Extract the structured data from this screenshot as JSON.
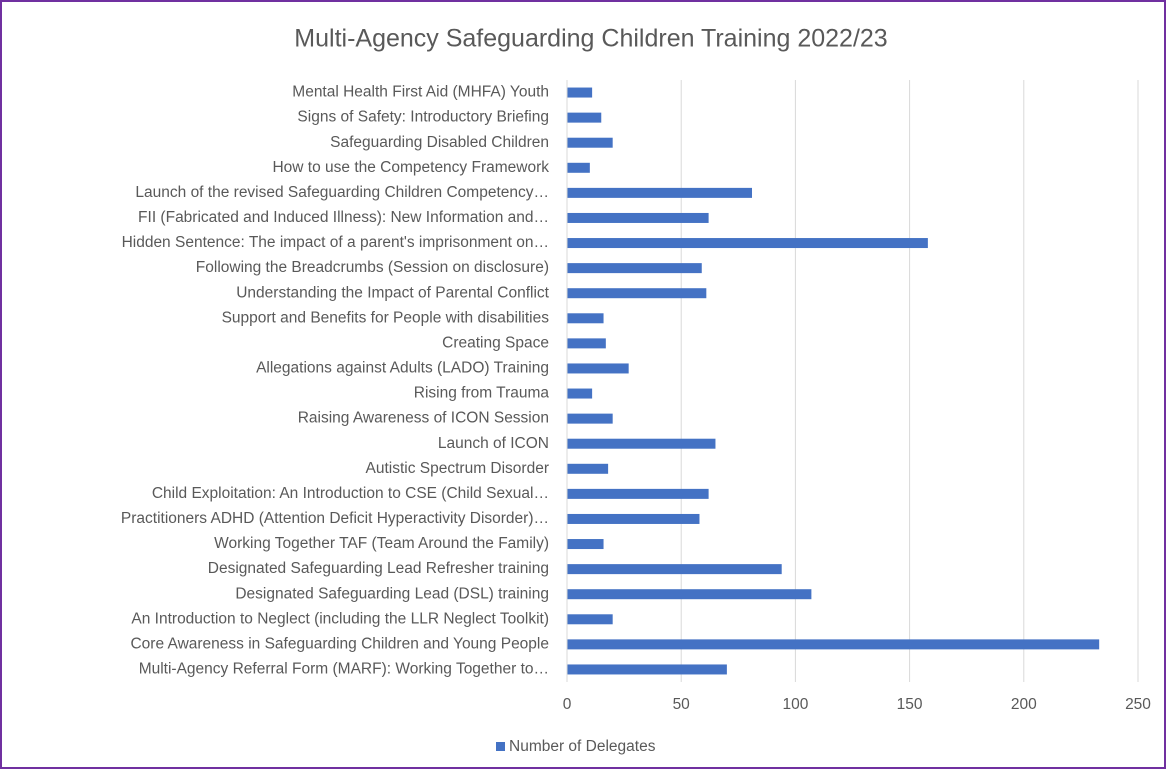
{
  "chart_data": {
    "type": "hbar",
    "title": "Multi-Agency Safeguarding Children Training 2022/23",
    "categories": [
      "Mental Health First Aid (MHFA) Youth",
      "Signs of Safety: Introductory Briefing",
      "Safeguarding Disabled Children",
      "How to use the Competency Framework",
      "Launch of the revised Safeguarding Children Competency…",
      "FII (Fabricated and Induced Illness): New Information and…",
      "Hidden Sentence: The impact of a parent's imprisonment on…",
      "Following the Breadcrumbs (Session on disclosure)",
      "Understanding the Impact of Parental Conflict",
      "Support and Benefits for People with disabilities",
      "Creating Space",
      "Allegations against Adults (LADO) Training",
      "Rising from Trauma",
      "Raising Awareness of ICON Session",
      "Launch of ICON",
      "Autistic Spectrum Disorder",
      "Child Exploitation: An Introduction to CSE (Child Sexual…",
      "Practitioners ADHD (Attention Deficit Hyperactivity Disorder)…",
      "Working Together TAF (Team Around the Family)",
      "Designated Safeguarding Lead Refresher training",
      "Designated Safeguarding Lead (DSL) training",
      "An Introduction to Neglect (including the LLR Neglect Toolkit)",
      "Core Awareness in Safeguarding Children and Young People",
      "Multi-Agency Referral Form (MARF): Working Together to…"
    ],
    "series": [
      {
        "name": "Number of Delegates",
        "color": "#4472c4",
        "values": [
          11,
          15,
          20,
          10,
          81,
          62,
          158,
          59,
          61,
          16,
          17,
          27,
          11,
          20,
          65,
          18,
          62,
          58,
          16,
          94,
          107,
          20,
          233,
          70
        ]
      }
    ],
    "xlim": [
      0,
      250
    ],
    "xticks": [
      0,
      50,
      100,
      150,
      200,
      250
    ],
    "grid": true,
    "legend": "bottom"
  }
}
